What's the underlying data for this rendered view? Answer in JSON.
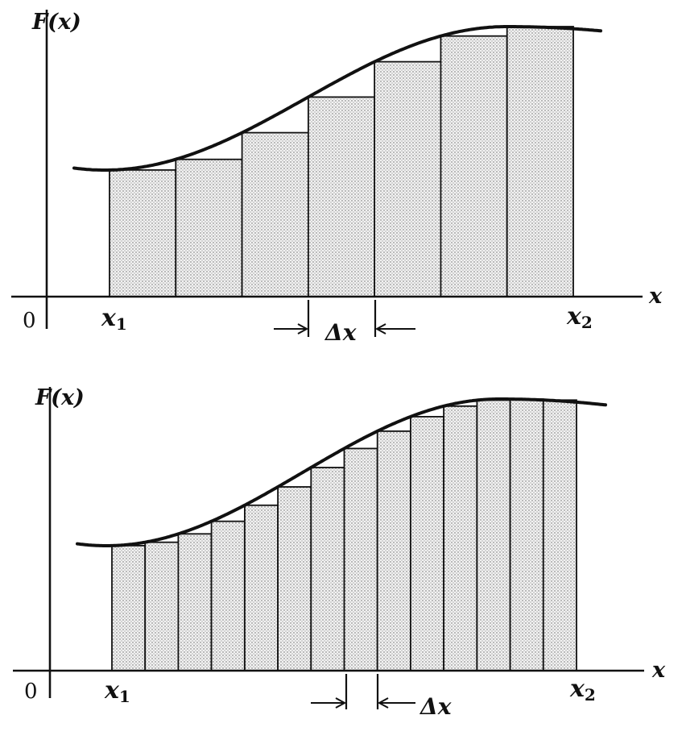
{
  "panels": [
    {
      "y_label": "F(x)",
      "x_label": "x",
      "origin_label": "0",
      "x1_label": "x",
      "x1_sub": "1",
      "x2_label": "x",
      "x2_sub": "2",
      "dx_label": "Δx",
      "rect_count": 7
    },
    {
      "y_label": "F(x)",
      "x_label": "x",
      "origin_label": "0",
      "x1_label": "x",
      "x1_sub": "1",
      "x2_label": "x",
      "x2_sub": "2",
      "dx_label": "Δx",
      "rect_count": 14
    }
  ],
  "colors": {
    "ink": "#111111",
    "fill": "#d9d9d9"
  }
}
